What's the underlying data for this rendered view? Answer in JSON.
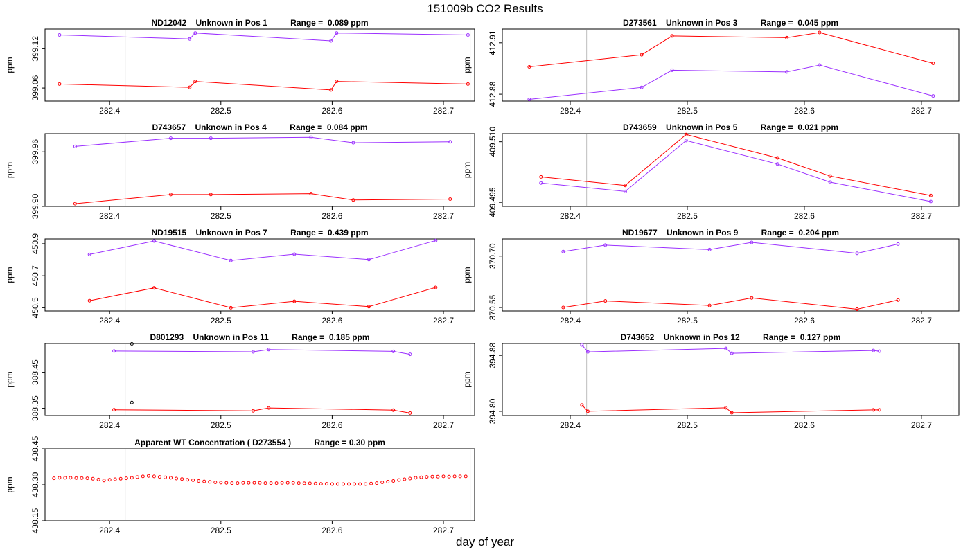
{
  "page": {
    "title": "151009b  CO2 Results",
    "xlabel": "day of year"
  },
  "colors": {
    "series_a": "#9b30ff",
    "series_b": "#ff0000",
    "extra": "#000000",
    "refline": "#bebebe"
  },
  "chart_data": [
    {
      "type": "line",
      "title": "ND12042    Unknown in Pos 1          Range =  0.089 ppm",
      "ylabel": "ppm",
      "xlim": [
        282.342,
        282.728
      ],
      "ylim": [
        399.04,
        399.15
      ],
      "xticks": [
        "282.4",
        "282.5",
        "282.6",
        "282.7"
      ],
      "yticks": [
        "399.06",
        "399.12"
      ],
      "vlines": [
        282.414,
        282.724
      ],
      "series": [
        {
          "name": "upper",
          "color": "#9b30ff",
          "x": [
            282.355,
            282.472,
            282.477,
            282.599,
            282.604,
            282.722
          ],
          "y": [
            399.141,
            399.135,
            399.144,
            399.132,
            399.144,
            399.141
          ]
        },
        {
          "name": "lower",
          "color": "#ff0000",
          "x": [
            282.355,
            282.472,
            282.477,
            282.599,
            282.604,
            282.722
          ],
          "y": [
            399.066,
            399.061,
            399.07,
            399.057,
            399.07,
            399.066
          ]
        }
      ]
    },
    {
      "type": "line",
      "title": "D273561    Unknown in Pos 3          Range =  0.045 ppm",
      "ylabel": "ppm",
      "xlim": [
        282.342,
        282.732
      ],
      "ylim": [
        412.876,
        412.918
      ],
      "xticks": [
        "282.4",
        "282.5",
        "282.6",
        "282.7"
      ],
      "yticks": [
        "412.88",
        "412.91"
      ],
      "vlines": [
        282.414,
        282.727
      ],
      "series": [
        {
          "name": "upper",
          "color": "#ff0000",
          "x": [
            282.365,
            282.461,
            282.487,
            282.585,
            282.613,
            282.71
          ],
          "y": [
            412.896,
            412.903,
            412.914,
            412.913,
            412.916,
            412.898
          ]
        },
        {
          "name": "lower",
          "color": "#9b30ff",
          "x": [
            282.365,
            282.461,
            282.487,
            282.585,
            282.613,
            282.71
          ],
          "y": [
            412.877,
            412.884,
            412.894,
            412.893,
            412.897,
            412.879
          ]
        }
      ]
    },
    {
      "type": "line",
      "title": "D743657    Unknown in Pos 4          Range =  0.084 ppm",
      "ylabel": "ppm",
      "xlim": [
        282.342,
        282.728
      ],
      "ylim": [
        399.9,
        399.98
      ],
      "xticks": [
        "282.4",
        "282.5",
        "282.6",
        "282.7"
      ],
      "yticks": [
        "399.90",
        "399.96"
      ],
      "vlines": [
        282.414,
        282.724
      ],
      "series": [
        {
          "name": "upper",
          "color": "#9b30ff",
          "x": [
            282.369,
            282.455,
            282.491,
            282.581,
            282.619,
            282.706
          ],
          "y": [
            399.966,
            399.975,
            399.975,
            399.976,
            399.97,
            399.971
          ]
        },
        {
          "name": "lower",
          "color": "#ff0000",
          "x": [
            282.369,
            282.455,
            282.491,
            282.581,
            282.619,
            282.706
          ],
          "y": [
            399.903,
            399.913,
            399.913,
            399.914,
            399.907,
            399.908
          ]
        }
      ]
    },
    {
      "type": "line",
      "title": "D743659    Unknown in Pos 5          Range =  0.021 ppm",
      "ylabel": "ppm",
      "xlim": [
        282.342,
        282.732
      ],
      "ylim": [
        409.494,
        409.512
      ],
      "xticks": [
        "282.4",
        "282.5",
        "282.6",
        "282.7"
      ],
      "yticks": [
        "409.495",
        "409.510"
      ],
      "vlines": [
        282.414,
        282.727
      ],
      "series": [
        {
          "name": "upper",
          "color": "#ff0000",
          "x": [
            282.375,
            282.447,
            282.499,
            282.577,
            282.622,
            282.708
          ],
          "y": [
            409.5013,
            409.4992,
            409.5118,
            409.506,
            409.5015,
            409.4967
          ]
        },
        {
          "name": "lower",
          "color": "#9b30ff",
          "x": [
            282.375,
            282.447,
            282.499,
            282.577,
            282.622,
            282.708
          ],
          "y": [
            409.4998,
            409.4977,
            409.5103,
            409.5045,
            409.5,
            409.4952
          ]
        }
      ]
    },
    {
      "type": "line",
      "title": "ND19515    Unknown in Pos 7          Range =  0.439 ppm",
      "ylabel": "ppm",
      "xlim": [
        282.342,
        282.728
      ],
      "ylim": [
        450.48,
        450.93
      ],
      "xticks": [
        "282.4",
        "282.5",
        "282.6",
        "282.7"
      ],
      "yticks": [
        "450.5",
        "450.7",
        "450.9"
      ],
      "vlines": [
        282.414,
        282.724
      ],
      "series": [
        {
          "name": "upper",
          "color": "#9b30ff",
          "x": [
            282.382,
            282.44,
            282.509,
            282.566,
            282.633,
            282.693
          ],
          "y": [
            450.833,
            450.917,
            450.795,
            450.835,
            450.801,
            450.92
          ]
        },
        {
          "name": "lower",
          "color": "#ff0000",
          "x": [
            282.382,
            282.44,
            282.509,
            282.566,
            282.633,
            282.693
          ],
          "y": [
            450.544,
            450.624,
            450.5,
            450.54,
            450.507,
            450.627
          ]
        }
      ]
    },
    {
      "type": "line",
      "title": "ND19677    Unknown in Pos 9          Range =  0.204 ppm",
      "ylabel": "ppm",
      "xlim": [
        282.342,
        282.732
      ],
      "ylim": [
        370.54,
        370.75
      ],
      "xticks": [
        "282.4",
        "282.5",
        "282.6",
        "282.7"
      ],
      "yticks": [
        "370.55",
        "370.70"
      ],
      "vlines": [
        282.414,
        282.727
      ],
      "series": [
        {
          "name": "upper",
          "color": "#9b30ff",
          "x": [
            282.394,
            282.43,
            282.519,
            282.555,
            282.645,
            282.68
          ],
          "y": [
            370.713,
            370.732,
            370.719,
            370.74,
            370.708,
            370.735
          ]
        },
        {
          "name": "lower",
          "color": "#ff0000",
          "x": [
            282.394,
            282.43,
            282.519,
            282.555,
            282.645,
            282.68
          ],
          "y": [
            370.55,
            370.569,
            370.556,
            370.578,
            370.545,
            370.572
          ]
        }
      ]
    },
    {
      "type": "line",
      "title": "D801293    Unknown in Pos 11          Range =  0.185 ppm",
      "ylabel": "ppm",
      "xlim": [
        282.342,
        282.728
      ],
      "ylim": [
        388.33,
        388.53
      ],
      "xticks": [
        "282.4",
        "282.5",
        "282.6",
        "282.7"
      ],
      "yticks": [
        "388.35",
        "388.45"
      ],
      "vlines": [
        282.414,
        282.724
      ],
      "series": [
        {
          "name": "upper",
          "color": "#9b30ff",
          "x": [
            282.404,
            282.529,
            282.543,
            282.655,
            282.67
          ],
          "y": [
            388.509,
            388.507,
            388.513,
            388.508,
            388.5
          ]
        },
        {
          "name": "lower",
          "color": "#ff0000",
          "x": [
            282.404,
            282.529,
            282.543,
            282.655,
            282.67
          ],
          "y": [
            388.346,
            388.343,
            388.351,
            388.345,
            388.337
          ]
        },
        {
          "name": "extra",
          "color": "#000000",
          "markers_only": true,
          "x": [
            282.42,
            282.42
          ],
          "y": [
            388.529,
            388.366
          ]
        }
      ]
    },
    {
      "type": "line",
      "title": "D743652    Unknown in Pos 12          Range =  0.127 ppm",
      "ylabel": "ppm",
      "xlim": [
        282.342,
        282.732
      ],
      "ylim": [
        394.794,
        394.897
      ],
      "xticks": [
        "282.4",
        "282.5",
        "282.6",
        "282.7"
      ],
      "yticks": [
        "394.80",
        "394.88"
      ],
      "vlines": [
        282.414,
        282.727
      ],
      "series": [
        {
          "name": "upper",
          "color": "#9b30ff",
          "x": [
            282.41,
            282.415,
            282.533,
            282.538,
            282.659,
            282.664
          ],
          "y": [
            394.895,
            394.885,
            394.89,
            394.883,
            394.887,
            394.886
          ]
        },
        {
          "name": "lower",
          "color": "#ff0000",
          "x": [
            282.41,
            282.415,
            282.533,
            282.538,
            282.659,
            282.664
          ],
          "y": [
            394.809,
            394.8,
            394.805,
            394.798,
            394.802,
            394.802
          ]
        }
      ]
    },
    {
      "type": "scatter",
      "title": "Apparent WT Concentration ( D273554 )          Range = 0.30 ppm",
      "ylabel": "ppm",
      "xlim": [
        282.342,
        282.728
      ],
      "ylim": [
        438.15,
        438.45
      ],
      "xticks": [
        "282.4",
        "282.5",
        "282.6",
        "282.7"
      ],
      "yticks": [
        "438.15",
        "438.30",
        "438.45"
      ],
      "vlines": [
        282.414,
        282.724
      ],
      "series": [
        {
          "name": "concentration",
          "color": "#ff0000",
          "markers_only": true,
          "x": [
            282.35,
            282.355,
            282.36,
            282.365,
            282.37,
            282.375,
            282.38,
            282.385,
            282.39,
            282.395,
            282.4,
            282.405,
            282.41,
            282.415,
            282.42,
            282.425,
            282.43,
            282.435,
            282.44,
            282.445,
            282.45,
            282.455,
            282.46,
            282.465,
            282.47,
            282.475,
            282.48,
            282.485,
            282.49,
            282.495,
            282.5,
            282.505,
            282.51,
            282.515,
            282.52,
            282.525,
            282.53,
            282.535,
            282.54,
            282.545,
            282.55,
            282.555,
            282.56,
            282.565,
            282.57,
            282.575,
            282.58,
            282.585,
            282.59,
            282.595,
            282.6,
            282.605,
            282.61,
            282.615,
            282.62,
            282.625,
            282.63,
            282.635,
            282.64,
            282.645,
            282.65,
            282.655,
            282.66,
            282.665,
            282.67,
            282.675,
            282.68,
            282.685,
            282.69,
            282.695,
            282.7,
            282.705,
            282.71,
            282.715,
            282.72
          ],
          "y": [
            438.327,
            438.329,
            438.329,
            438.329,
            438.328,
            438.328,
            438.327,
            438.325,
            438.322,
            438.318,
            438.321,
            438.323,
            438.325,
            438.327,
            438.329,
            438.332,
            438.335,
            438.337,
            438.335,
            438.333,
            438.331,
            438.329,
            438.326,
            438.324,
            438.321,
            438.319,
            438.316,
            438.314,
            438.312,
            438.31,
            438.309,
            438.308,
            438.307,
            438.307,
            438.308,
            438.308,
            438.308,
            438.308,
            438.307,
            438.307,
            438.307,
            438.308,
            438.308,
            438.308,
            438.307,
            438.306,
            438.306,
            438.305,
            438.304,
            438.304,
            438.303,
            438.303,
            438.303,
            438.303,
            438.303,
            438.303,
            438.303,
            438.305,
            438.307,
            438.31,
            438.313,
            438.316,
            438.32,
            438.323,
            438.326,
            438.329,
            438.331,
            438.333,
            438.334,
            438.334,
            438.335,
            438.334,
            438.335,
            438.335,
            438.335
          ]
        }
      ]
    }
  ]
}
